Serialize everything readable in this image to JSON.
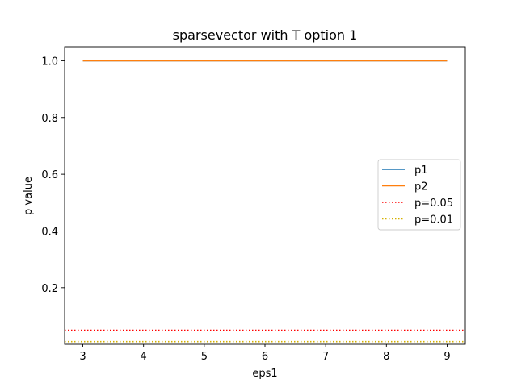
{
  "chart_data": {
    "type": "line",
    "title": "sparsevector with T option 1",
    "xlabel": "eps1",
    "ylabel": "p value",
    "xlim": [
      2.7,
      9.3
    ],
    "ylim": [
      0.0005,
      1.0495
    ],
    "xticks": [
      3,
      4,
      5,
      6,
      7,
      8,
      9
    ],
    "xtick_labels": [
      "3",
      "4",
      "5",
      "6",
      "7",
      "8",
      "9"
    ],
    "yticks": [
      0.2,
      0.4,
      0.6,
      0.8,
      1.0
    ],
    "ytick_labels": [
      "0.2",
      "0.4",
      "0.6",
      "0.8",
      "1.0"
    ],
    "grid": false,
    "legend_position": "center-right",
    "series": [
      {
        "name": "p1",
        "color": "#1f77b4",
        "style": "solid",
        "x": [
          3,
          4,
          5,
          6,
          7,
          8,
          9
        ],
        "values": [
          1.0,
          1.0,
          1.0,
          1.0,
          1.0,
          1.0,
          1.0
        ]
      },
      {
        "name": "p2",
        "color": "#ff7f0e",
        "style": "solid",
        "x": [
          3,
          4,
          5,
          6,
          7,
          8,
          9
        ],
        "values": [
          1.0,
          1.0,
          1.0,
          1.0,
          1.0,
          1.0,
          1.0
        ]
      }
    ],
    "reference_lines": [
      {
        "name": "p=0.05",
        "color": "#ff0000",
        "style": "dotted",
        "y": 0.05
      },
      {
        "name": "p=0.01",
        "color": "#d4b000",
        "style": "dotted",
        "y": 0.01
      }
    ]
  }
}
